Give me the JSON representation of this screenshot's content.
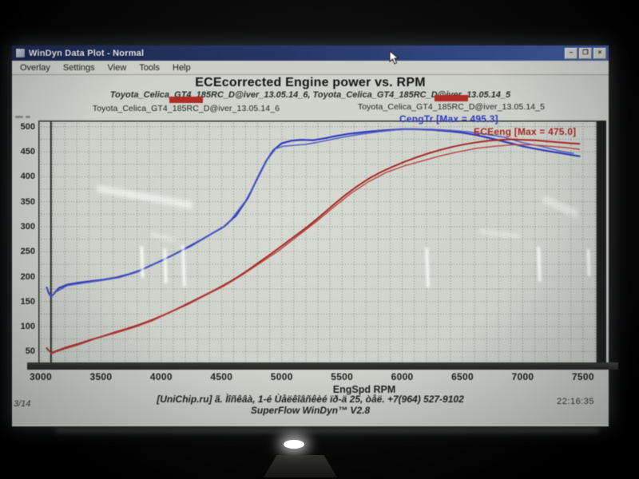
{
  "window": {
    "title": "WinDyn Data Plot - Normal",
    "menu": [
      "Overlay",
      "Settings",
      "View",
      "Tools",
      "Help"
    ],
    "buttons": {
      "minimize": "–",
      "maximize": "❐",
      "close": "×"
    }
  },
  "chart": {
    "title": "ECEcorrected Engine power vs. RPM",
    "subtitle": "Toyota_Celica_GT4_185RC_D@iver_13.05.14_6, Toyota_Celica_GT4_185RC_D@iver_13.05.14_5",
    "legend": [
      {
        "label": "Toyota_Celica_GT4_185RC_D@iver_13.05.14_6",
        "swatch_color": "#c0281e"
      },
      {
        "label": "Toyota_Celica_GT4_185RC_D@iver_13.05.14_5",
        "swatch_color": "#c0281e"
      }
    ],
    "annotations": [
      {
        "text": "CengTr [Max = 495.3]",
        "color": "#2a3bd0"
      },
      {
        "text": "ECEeng [Max = 475.0]",
        "color": "#b62420"
      }
    ],
    "xlabel": "EngSpd RPM"
  },
  "chart_data": {
    "type": "line",
    "title": "ECEcorrected Engine power vs. RPM",
    "xlabel": "EngSpd RPM",
    "ylabel": "",
    "xlim": [
      2980,
      7620
    ],
    "ylim": [
      25,
      512.5
    ],
    "x_ticks": [
      3000,
      3500,
      4000,
      4500,
      5000,
      5500,
      6000,
      6500,
      7000,
      7500
    ],
    "y_ticks": [
      500,
      450,
      400,
      350,
      300,
      250,
      200,
      150,
      100,
      50
    ],
    "x_grid_step": 100,
    "y_grid_step": 25,
    "grid": true,
    "legend_position": "top",
    "cursor_rpm": 3085,
    "series": [
      {
        "name": "CengTr Toyota_Celica_GT4_185RC_D@iver_13.05.14_6",
        "max": 495.3,
        "color": "#2a3bd0",
        "width": 2.2,
        "points": [
          [
            3050,
            178
          ],
          [
            3065,
            168
          ],
          [
            3085,
            160
          ],
          [
            3110,
            166
          ],
          [
            3150,
            177
          ],
          [
            3220,
            184
          ],
          [
            3320,
            188
          ],
          [
            3420,
            191
          ],
          [
            3520,
            194
          ],
          [
            3620,
            198
          ],
          [
            3720,
            204
          ],
          [
            3820,
            212
          ],
          [
            3920,
            223
          ],
          [
            4020,
            234
          ],
          [
            4120,
            246
          ],
          [
            4220,
            259
          ],
          [
            4320,
            272
          ],
          [
            4420,
            286
          ],
          [
            4520,
            300
          ],
          [
            4620,
            322
          ],
          [
            4720,
            358
          ],
          [
            4800,
            398
          ],
          [
            4870,
            431
          ],
          [
            4930,
            453
          ],
          [
            5000,
            467
          ],
          [
            5080,
            472
          ],
          [
            5160,
            474
          ],
          [
            5260,
            473
          ],
          [
            5360,
            477
          ],
          [
            5460,
            482
          ],
          [
            5560,
            486
          ],
          [
            5700,
            490
          ],
          [
            5850,
            493
          ],
          [
            6000,
            495
          ],
          [
            6120,
            495
          ],
          [
            6250,
            494
          ],
          [
            6400,
            491
          ],
          [
            6500,
            488
          ],
          [
            6600,
            484
          ],
          [
            6700,
            479
          ],
          [
            6800,
            473
          ],
          [
            6900,
            467
          ],
          [
            7000,
            461
          ],
          [
            7100,
            456
          ],
          [
            7200,
            452
          ],
          [
            7300,
            448
          ],
          [
            7400,
            444
          ],
          [
            7470,
            441
          ]
        ]
      },
      {
        "name": "CengTr Toyota_Celica_GT4_185RC_D@iver_13.05.14_5",
        "color": "#4f5cd8",
        "width": 1.5,
        "points": [
          [
            3050,
            176
          ],
          [
            3085,
            162
          ],
          [
            3130,
            170
          ],
          [
            3220,
            182
          ],
          [
            3350,
            187
          ],
          [
            3500,
            192
          ],
          [
            3650,
            198
          ],
          [
            3800,
            209
          ],
          [
            3950,
            226
          ],
          [
            4100,
            243
          ],
          [
            4250,
            261
          ],
          [
            4400,
            283
          ],
          [
            4550,
            305
          ],
          [
            4700,
            352
          ],
          [
            4800,
            396
          ],
          [
            4880,
            434
          ],
          [
            4950,
            456
          ],
          [
            5010,
            461
          ],
          [
            5100,
            463
          ],
          [
            5200,
            465
          ],
          [
            5300,
            469
          ],
          [
            5400,
            474
          ],
          [
            5500,
            479
          ],
          [
            5650,
            485
          ],
          [
            5800,
            490
          ],
          [
            5950,
            494
          ],
          [
            6100,
            495
          ],
          [
            6250,
            495
          ],
          [
            6400,
            493
          ],
          [
            6550,
            490
          ],
          [
            6700,
            485
          ],
          [
            6850,
            479
          ],
          [
            7000,
            468
          ],
          [
            7150,
            461
          ],
          [
            7300,
            452
          ],
          [
            7420,
            447
          ]
        ]
      },
      {
        "name": "ECEeng Toyota_Celica_GT4_185RC_D@iver_13.05.14_6",
        "max": 475.0,
        "color": "#b62420",
        "width": 2,
        "points": [
          [
            3050,
            57
          ],
          [
            3070,
            51
          ],
          [
            3090,
            47
          ],
          [
            3140,
            52
          ],
          [
            3220,
            59
          ],
          [
            3320,
            66
          ],
          [
            3420,
            74
          ],
          [
            3520,
            81
          ],
          [
            3620,
            89
          ],
          [
            3720,
            96
          ],
          [
            3820,
            104
          ],
          [
            3920,
            113
          ],
          [
            4020,
            123
          ],
          [
            4120,
            134
          ],
          [
            4220,
            146
          ],
          [
            4320,
            158
          ],
          [
            4420,
            170
          ],
          [
            4520,
            183
          ],
          [
            4620,
            197
          ],
          [
            4720,
            213
          ],
          [
            4820,
            230
          ],
          [
            4920,
            247
          ],
          [
            5020,
            265
          ],
          [
            5120,
            283
          ],
          [
            5220,
            301
          ],
          [
            5320,
            321
          ],
          [
            5420,
            342
          ],
          [
            5520,
            362
          ],
          [
            5620,
            380
          ],
          [
            5720,
            396
          ],
          [
            5820,
            409
          ],
          [
            5920,
            420
          ],
          [
            6020,
            430
          ],
          [
            6120,
            439
          ],
          [
            6220,
            447
          ],
          [
            6320,
            454
          ],
          [
            6420,
            460
          ],
          [
            6520,
            465
          ],
          [
            6620,
            469
          ],
          [
            6720,
            472
          ],
          [
            6820,
            474
          ],
          [
            6900,
            475
          ],
          [
            7000,
            474
          ],
          [
            7100,
            473
          ],
          [
            7200,
            471
          ],
          [
            7300,
            469
          ],
          [
            7400,
            467
          ],
          [
            7470,
            466
          ]
        ]
      },
      {
        "name": "ECEeng Toyota_Celica_GT4_185RC_D@iver_13.05.14_5",
        "color": "#c44038",
        "width": 1.4,
        "points": [
          [
            3050,
            55
          ],
          [
            3090,
            46
          ],
          [
            3180,
            54
          ],
          [
            3320,
            64
          ],
          [
            3470,
            77
          ],
          [
            3620,
            87
          ],
          [
            3770,
            98
          ],
          [
            3920,
            111
          ],
          [
            4070,
            128
          ],
          [
            4220,
            144
          ],
          [
            4370,
            163
          ],
          [
            4520,
            181
          ],
          [
            4670,
            203
          ],
          [
            4820,
            227
          ],
          [
            4970,
            251
          ],
          [
            5120,
            279
          ],
          [
            5270,
            307
          ],
          [
            5420,
            337
          ],
          [
            5570,
            366
          ],
          [
            5720,
            390
          ],
          [
            5870,
            409
          ],
          [
            6020,
            422
          ],
          [
            6170,
            432
          ],
          [
            6320,
            442
          ],
          [
            6470,
            450
          ],
          [
            6620,
            457
          ],
          [
            6770,
            461
          ],
          [
            6920,
            464
          ],
          [
            7070,
            464
          ],
          [
            7220,
            461
          ],
          [
            7370,
            458
          ],
          [
            7470,
            455
          ]
        ]
      }
    ]
  },
  "footer": {
    "line1": "[UniChip.ru] ã. Ìîñêâà, 1-é Ùåëêîâñêèé ïð-ä 25, òåë. +7(964) 527-9102",
    "line2": "SuperFlow WinDyn™ V2.8",
    "page": "3/14",
    "time": "22:16:35"
  }
}
